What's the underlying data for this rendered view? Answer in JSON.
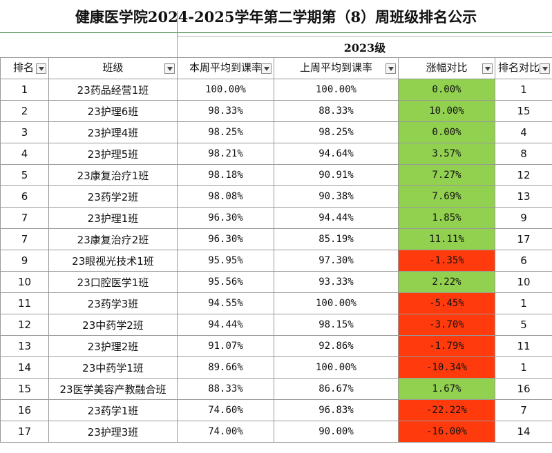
{
  "title": "健康医学院2024-2025学年第二学期第（8）周班级排名公示",
  "group_label": "2023级",
  "headers": [
    "排名",
    "班级",
    "本周平均到课率",
    "上周平均到课率",
    "涨幅对比",
    "排名对比"
  ],
  "colors": {
    "up": "#92d050",
    "down": "#ff3b0d",
    "border": "#999999"
  },
  "rows": [
    {
      "rank": "1",
      "class": "23药品经营1班",
      "this_week": "100.00%",
      "last_week": "100.00%",
      "change": "0.00%",
      "prev_rank": "1",
      "trend": "up"
    },
    {
      "rank": "2",
      "class": "23护理6班",
      "this_week": "98.33%",
      "last_week": "88.33%",
      "change": "10.00%",
      "prev_rank": "15",
      "trend": "up"
    },
    {
      "rank": "3",
      "class": "23护理4班",
      "this_week": "98.25%",
      "last_week": "98.25%",
      "change": "0.00%",
      "prev_rank": "4",
      "trend": "up"
    },
    {
      "rank": "4",
      "class": "23护理5班",
      "this_week": "98.21%",
      "last_week": "94.64%",
      "change": "3.57%",
      "prev_rank": "8",
      "trend": "up"
    },
    {
      "rank": "5",
      "class": "23康复治疗1班",
      "this_week": "98.18%",
      "last_week": "90.91%",
      "change": "7.27%",
      "prev_rank": "12",
      "trend": "up"
    },
    {
      "rank": "6",
      "class": "23药学2班",
      "this_week": "98.08%",
      "last_week": "90.38%",
      "change": "7.69%",
      "prev_rank": "13",
      "trend": "up"
    },
    {
      "rank": "7",
      "class": "23护理1班",
      "this_week": "96.30%",
      "last_week": "94.44%",
      "change": "1.85%",
      "prev_rank": "9",
      "trend": "up"
    },
    {
      "rank": "7",
      "class": "23康复治疗2班",
      "this_week": "96.30%",
      "last_week": "85.19%",
      "change": "11.11%",
      "prev_rank": "17",
      "trend": "up"
    },
    {
      "rank": "9",
      "class": "23眼视光技术1班",
      "this_week": "95.95%",
      "last_week": "97.30%",
      "change": "-1.35%",
      "prev_rank": "6",
      "trend": "down"
    },
    {
      "rank": "10",
      "class": "23口腔医学1班",
      "this_week": "95.56%",
      "last_week": "93.33%",
      "change": "2.22%",
      "prev_rank": "10",
      "trend": "up"
    },
    {
      "rank": "11",
      "class": "23药学3班",
      "this_week": "94.55%",
      "last_week": "100.00%",
      "change": "-5.45%",
      "prev_rank": "1",
      "trend": "down"
    },
    {
      "rank": "12",
      "class": "23中药学2班",
      "this_week": "94.44%",
      "last_week": "98.15%",
      "change": "-3.70%",
      "prev_rank": "5",
      "trend": "down"
    },
    {
      "rank": "13",
      "class": "23护理2班",
      "this_week": "91.07%",
      "last_week": "92.86%",
      "change": "-1.79%",
      "prev_rank": "11",
      "trend": "down"
    },
    {
      "rank": "14",
      "class": "23中药学1班",
      "this_week": "89.66%",
      "last_week": "100.00%",
      "change": "-10.34%",
      "prev_rank": "1",
      "trend": "down"
    },
    {
      "rank": "15",
      "class": "23医学美容产教融合班",
      "this_week": "88.33%",
      "last_week": "86.67%",
      "change": "1.67%",
      "prev_rank": "16",
      "trend": "up"
    },
    {
      "rank": "16",
      "class": "23药学1班",
      "this_week": "74.60%",
      "last_week": "96.83%",
      "change": "-22.22%",
      "prev_rank": "7",
      "trend": "down"
    },
    {
      "rank": "17",
      "class": "23护理3班",
      "this_week": "74.00%",
      "last_week": "90.00%",
      "change": "-16.00%",
      "prev_rank": "14",
      "trend": "down"
    }
  ]
}
